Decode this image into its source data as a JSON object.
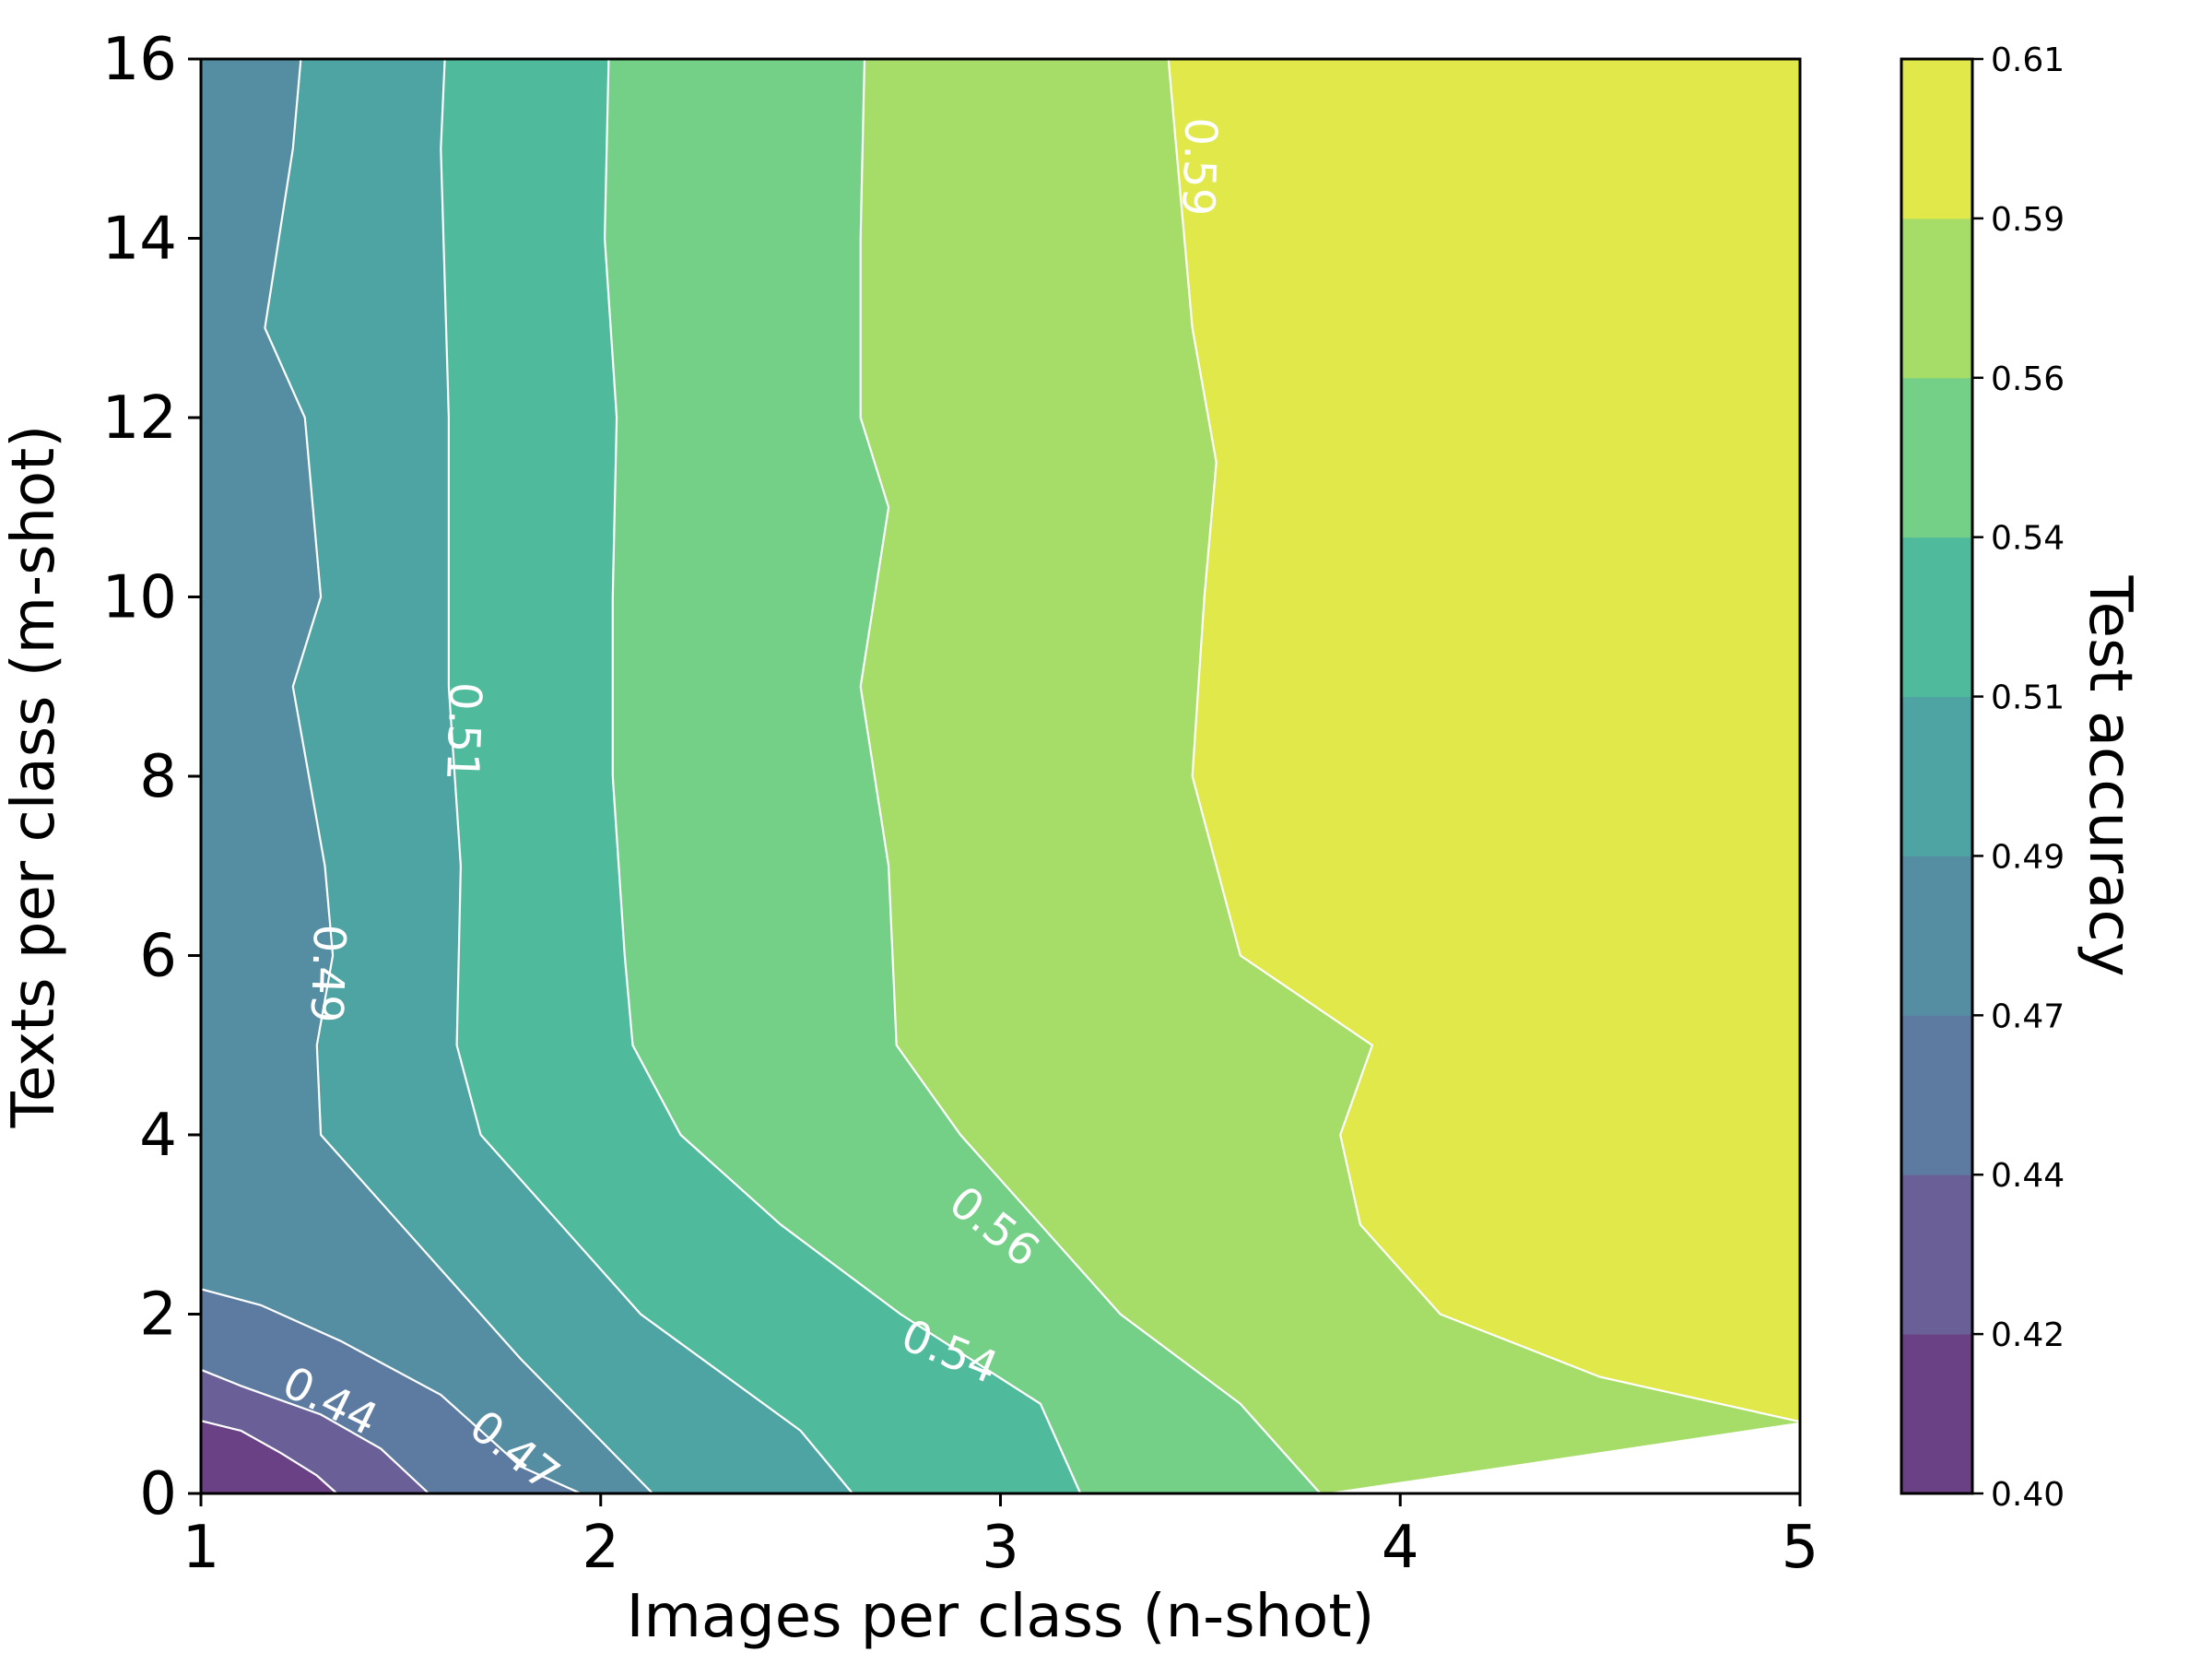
{
  "chart_data": {
    "type": "contour",
    "xlabel": "Images per class (n-shot)",
    "ylabel": "Texts per class (m-shot)",
    "colorbar_label": "Test accuracy",
    "xlim": [
      1,
      5
    ],
    "ylim": [
      0,
      16
    ],
    "x_ticks": [
      "1",
      "2",
      "3",
      "4",
      "5"
    ],
    "y_ticks": [
      "0",
      "2",
      "4",
      "6",
      "8",
      "10",
      "12",
      "14",
      "16"
    ],
    "colorbar": {
      "range": [
        0.4,
        0.61
      ],
      "ticks": [
        "0.40",
        "0.42",
        "0.44",
        "0.47",
        "0.49",
        "0.51",
        "0.54",
        "0.56",
        "0.59",
        "0.61"
      ],
      "level_colors": [
        "#6b4185",
        "#6b5f98",
        "#5d7ba0",
        "#558da3",
        "#4ea3a3",
        "#50bb9c",
        "#74cf87",
        "#a6dc68",
        "#e0e84a"
      ]
    },
    "levels": [
      0.4,
      0.42,
      0.44,
      0.47,
      0.49,
      0.51,
      0.54,
      0.56,
      0.59,
      0.61
    ],
    "contours": [
      {
        "level": 0.42,
        "label": null,
        "points": [
          [
            1.0,
            0.81
          ],
          [
            1.1,
            0.7
          ],
          [
            1.2,
            0.45
          ],
          [
            1.29,
            0.2
          ],
          [
            1.34,
            0.0
          ]
        ]
      },
      {
        "level": 0.44,
        "label": "0.44",
        "points": [
          [
            1.0,
            1.38
          ],
          [
            1.1,
            1.2
          ],
          [
            1.3,
            0.88
          ],
          [
            1.45,
            0.5
          ],
          [
            1.57,
            0.0
          ]
        ]
      },
      {
        "level": 0.47,
        "label": "0.47",
        "points": [
          [
            1.0,
            2.28
          ],
          [
            1.15,
            2.1
          ],
          [
            1.35,
            1.7
          ],
          [
            1.6,
            1.1
          ],
          [
            1.8,
            0.3
          ],
          [
            1.95,
            0.0
          ]
        ]
      },
      {
        "level": 0.49,
        "label": "0.49",
        "points": [
          [
            1.25,
            16.0
          ],
          [
            1.23,
            15.0
          ],
          [
            1.16,
            13.0
          ],
          [
            1.26,
            12.0
          ],
          [
            1.3,
            10.0
          ],
          [
            1.23,
            9.0
          ],
          [
            1.31,
            7.0
          ],
          [
            1.33,
            6.0
          ],
          [
            1.29,
            5.0
          ],
          [
            1.3,
            4.0
          ],
          [
            1.5,
            3.0
          ],
          [
            1.8,
            1.5
          ],
          [
            2.13,
            0.0
          ]
        ]
      },
      {
        "level": 0.51,
        "label": "0.51",
        "points": [
          [
            1.61,
            16.0
          ],
          [
            1.6,
            15.0
          ],
          [
            1.62,
            12.0
          ],
          [
            1.62,
            9.0
          ],
          [
            1.65,
            7.0
          ],
          [
            1.64,
            5.0
          ],
          [
            1.7,
            4.0
          ],
          [
            1.9,
            3.0
          ],
          [
            2.1,
            2.0
          ],
          [
            2.5,
            0.7
          ],
          [
            2.63,
            0.0
          ]
        ]
      },
      {
        "level": 0.54,
        "label": "0.54",
        "points": [
          [
            2.02,
            16.0
          ],
          [
            2.01,
            14.0
          ],
          [
            2.04,
            12.0
          ],
          [
            2.03,
            10.0
          ],
          [
            2.03,
            8.0
          ],
          [
            2.06,
            6.0
          ],
          [
            2.08,
            5.0
          ],
          [
            2.2,
            4.0
          ],
          [
            2.45,
            3.0
          ],
          [
            2.75,
            2.0
          ],
          [
            3.1,
            1.0
          ],
          [
            3.2,
            0.0
          ]
        ]
      },
      {
        "level": 0.56,
        "label": "0.56",
        "points": [
          [
            2.66,
            16.0
          ],
          [
            2.65,
            14.0
          ],
          [
            2.65,
            12.0
          ],
          [
            2.72,
            11.0
          ],
          [
            2.65,
            9.0
          ],
          [
            2.72,
            7.0
          ],
          [
            2.74,
            5.0
          ],
          [
            2.9,
            4.0
          ],
          [
            3.1,
            3.0
          ],
          [
            3.3,
            2.0
          ],
          [
            3.6,
            1.0
          ],
          [
            3.8,
            0.0
          ]
        ]
      },
      {
        "level": 0.59,
        "label": "0.59",
        "points": [
          [
            3.42,
            16.0
          ],
          [
            3.44,
            15.0
          ],
          [
            3.48,
            13.0
          ],
          [
            3.54,
            11.5
          ],
          [
            3.51,
            10.0
          ],
          [
            3.48,
            8.0
          ],
          [
            3.6,
            6.0
          ],
          [
            3.93,
            5.0
          ],
          [
            3.85,
            4.0
          ],
          [
            3.9,
            3.0
          ],
          [
            4.1,
            2.0
          ],
          [
            4.5,
            1.3
          ],
          [
            5.0,
            0.8
          ]
        ]
      }
    ]
  }
}
